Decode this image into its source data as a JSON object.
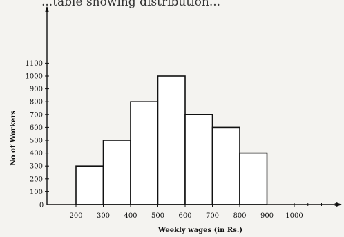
{
  "partial_heading": "...table showing distribution...",
  "chart_data": {
    "type": "bar",
    "histogram": true,
    "bins": [
      [
        200,
        300
      ],
      [
        300,
        400
      ],
      [
        400,
        500
      ],
      [
        500,
        600
      ],
      [
        600,
        700
      ],
      [
        700,
        800
      ],
      [
        800,
        900
      ]
    ],
    "values": [
      300,
      500,
      800,
      1000,
      700,
      600,
      400
    ],
    "x_ticks": [
      "200",
      "300",
      "400",
      "500",
      "600",
      "700",
      "800",
      "900",
      "1000"
    ],
    "y_ticks": [
      "100",
      "200",
      "300",
      "400",
      "500",
      "600",
      "700",
      "800",
      "900",
      "1000",
      "1100"
    ],
    "origin_label": "0",
    "xlabel": "Weekly wages (in Rs.)",
    "ylabel": "No of Workers",
    "xlim": [
      200,
      1000
    ],
    "ylim": [
      0,
      1100
    ],
    "grid": false,
    "legend": "none",
    "colors": {
      "bar_fill": "#ffffff",
      "bar_stroke": "#111111",
      "axis": "#111111"
    }
  }
}
